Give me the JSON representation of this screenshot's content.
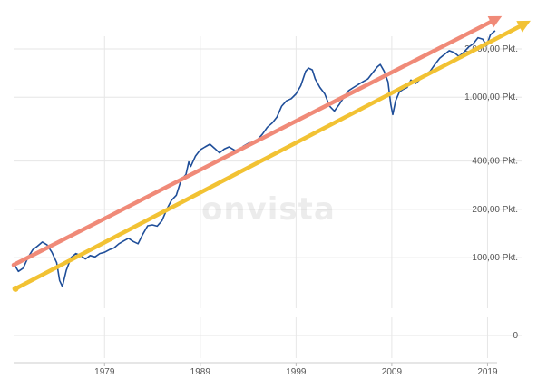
{
  "watermark": "onvista",
  "chart_data": {
    "type": "line",
    "title": "",
    "xlabel": "",
    "ylabel": "",
    "y_scale": "log",
    "x_range": [
      1969.5,
      2020
    ],
    "y_range": [
      55,
      2400
    ],
    "y_tick_values": [
      2000,
      1000,
      400,
      200,
      100
    ],
    "y_tick_labels": [
      "2.000,00 Pkt.",
      "1.000,00 Pkt.",
      "400,00 Pkt.",
      "200,00 Pkt.",
      "100,00 Pkt."
    ],
    "zero_label": "0",
    "x_tick_labels": [
      "1979",
      "1989",
      "1999",
      "2009",
      "2019"
    ],
    "x_tick_values": [
      1979,
      1989,
      1999,
      2009,
      2019
    ],
    "grid": true,
    "colors": {
      "series": "#1f4e99",
      "upper_trend": "#f08a78",
      "lower_trend": "#f2c233",
      "grid": "#e6e6e6"
    },
    "series": [
      {
        "values": [
          [
            1969.5,
            92
          ],
          [
            1970.0,
            82
          ],
          [
            1970.5,
            86
          ],
          [
            1971.0,
            100
          ],
          [
            1971.5,
            112
          ],
          [
            1972.0,
            118
          ],
          [
            1972.5,
            125
          ],
          [
            1973.0,
            120
          ],
          [
            1973.5,
            108
          ],
          [
            1974.0,
            93
          ],
          [
            1974.3,
            72
          ],
          [
            1974.6,
            66
          ],
          [
            1975.0,
            83
          ],
          [
            1975.5,
            100
          ],
          [
            1976.0,
            106
          ],
          [
            1976.5,
            103
          ],
          [
            1977.0,
            98
          ],
          [
            1977.5,
            103
          ],
          [
            1978.0,
            101
          ],
          [
            1978.5,
            106
          ],
          [
            1979.0,
            108
          ],
          [
            1979.5,
            112
          ],
          [
            1980.0,
            115
          ],
          [
            1980.5,
            122
          ],
          [
            1981.0,
            127
          ],
          [
            1981.5,
            132
          ],
          [
            1982.0,
            126
          ],
          [
            1982.5,
            122
          ],
          [
            1983.0,
            140
          ],
          [
            1983.5,
            158
          ],
          [
            1984.0,
            160
          ],
          [
            1984.5,
            157
          ],
          [
            1985.0,
            170
          ],
          [
            1985.5,
            200
          ],
          [
            1986.0,
            228
          ],
          [
            1986.5,
            245
          ],
          [
            1987.0,
            305
          ],
          [
            1987.5,
            330
          ],
          [
            1987.8,
            395
          ],
          [
            1988.0,
            370
          ],
          [
            1988.5,
            430
          ],
          [
            1989.0,
            470
          ],
          [
            1989.5,
            490
          ],
          [
            1990.0,
            510
          ],
          [
            1990.5,
            480
          ],
          [
            1991.0,
            450
          ],
          [
            1991.5,
            475
          ],
          [
            1992.0,
            490
          ],
          [
            1992.5,
            470
          ],
          [
            1993.0,
            460
          ],
          [
            1993.5,
            495
          ],
          [
            1994.0,
            515
          ],
          [
            1994.5,
            525
          ],
          [
            1995.0,
            545
          ],
          [
            1995.5,
            590
          ],
          [
            1996.0,
            650
          ],
          [
            1996.5,
            690
          ],
          [
            1997.0,
            750
          ],
          [
            1997.5,
            880
          ],
          [
            1998.0,
            950
          ],
          [
            1998.5,
            980
          ],
          [
            1999.0,
            1050
          ],
          [
            1999.5,
            1180
          ],
          [
            2000.0,
            1450
          ],
          [
            2000.3,
            1520
          ],
          [
            2000.7,
            1480
          ],
          [
            2001.0,
            1300
          ],
          [
            2001.5,
            1150
          ],
          [
            2002.0,
            1050
          ],
          [
            2002.5,
            880
          ],
          [
            2003.0,
            820
          ],
          [
            2003.5,
            900
          ],
          [
            2004.0,
            1000
          ],
          [
            2004.5,
            1100
          ],
          [
            2005.0,
            1150
          ],
          [
            2005.5,
            1200
          ],
          [
            2006.0,
            1250
          ],
          [
            2006.5,
            1300
          ],
          [
            2007.0,
            1420
          ],
          [
            2007.5,
            1550
          ],
          [
            2007.8,
            1600
          ],
          [
            2008.2,
            1450
          ],
          [
            2008.6,
            1250
          ],
          [
            2008.9,
            900
          ],
          [
            2009.1,
            780
          ],
          [
            2009.4,
            950
          ],
          [
            2009.8,
            1080
          ],
          [
            2010.2,
            1120
          ],
          [
            2010.6,
            1150
          ],
          [
            2011.0,
            1280
          ],
          [
            2011.5,
            1220
          ],
          [
            2012.0,
            1300
          ],
          [
            2012.5,
            1380
          ],
          [
            2013.0,
            1450
          ],
          [
            2013.5,
            1600
          ],
          [
            2014.0,
            1750
          ],
          [
            2014.5,
            1850
          ],
          [
            2015.0,
            1950
          ],
          [
            2015.5,
            1900
          ],
          [
            2016.0,
            1800
          ],
          [
            2016.5,
            1900
          ],
          [
            2017.0,
            2050
          ],
          [
            2017.5,
            2150
          ],
          [
            2018.0,
            2350
          ],
          [
            2018.5,
            2300
          ],
          [
            2018.9,
            2100
          ],
          [
            2019.3,
            2450
          ],
          [
            2019.8,
            2600
          ]
        ]
      }
    ],
    "trend_lines": [
      {
        "from": [
          1969.5,
          90
        ],
        "to": [
          2020.5,
          3200
        ]
      },
      {
        "from": [
          1969.7,
          64
        ],
        "to": [
          2023.5,
          3000
        ]
      }
    ]
  }
}
